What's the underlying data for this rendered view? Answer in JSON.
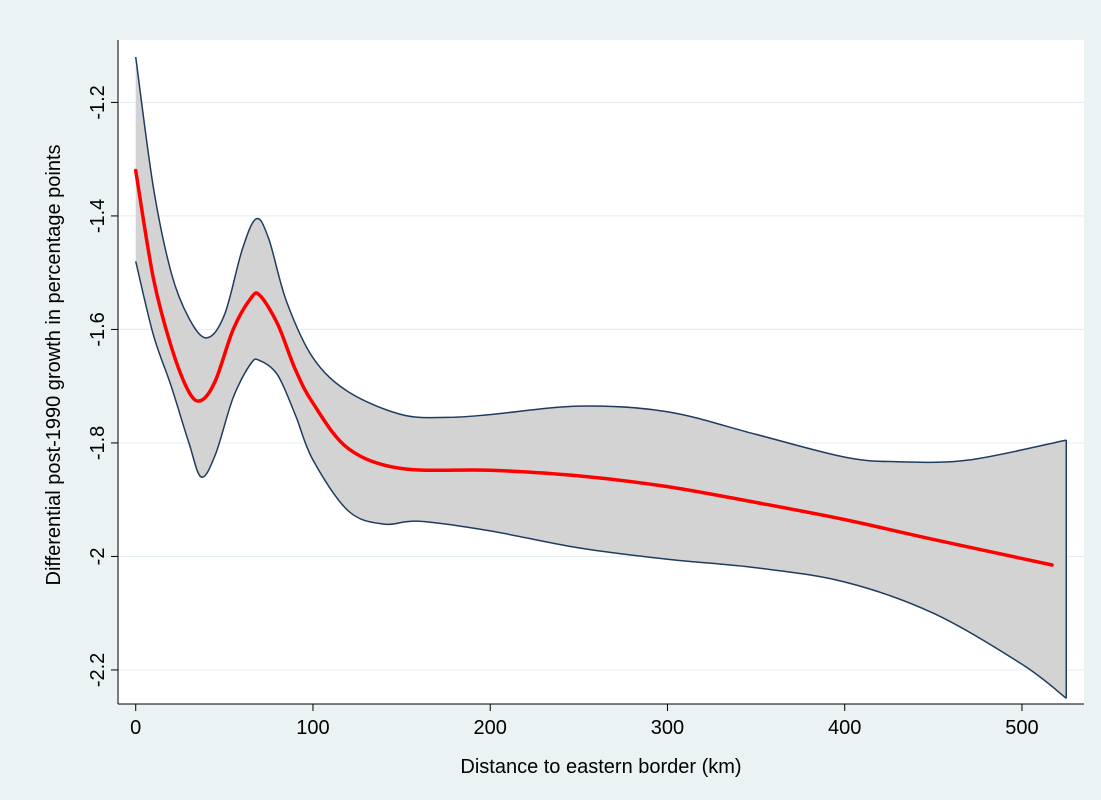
{
  "chart_data": {
    "type": "line",
    "xlabel": "Distance to eastern border (km)",
    "ylabel": "Differential post-1990 growth in percentage points",
    "xlim": [
      -10,
      535
    ],
    "ylim": [
      -2.26,
      -1.09
    ],
    "x_ticks": [
      0,
      100,
      200,
      300,
      400,
      500
    ],
    "x_tick_labels": [
      "0",
      "100",
      "200",
      "300",
      "400",
      "500"
    ],
    "y_ticks": [
      -1.2,
      -1.4,
      -1.6,
      -1.8,
      -2,
      -2.2
    ],
    "y_tick_labels": [
      "-1.2",
      "-1.4",
      "-1.6",
      "-1.8",
      "-2",
      "-2.2"
    ],
    "grid": "horizontal",
    "legend": "none",
    "colors": {
      "background": "#eaf2f3",
      "plot_background": "#ffffff",
      "grid": "#e3ecee",
      "band_fill": "#d3d3d3",
      "band_edge": "#1f3c5f",
      "line": "#ff0000"
    },
    "series": [
      {
        "role": "fit",
        "x": [
          0,
          10,
          20,
          30,
          37,
          45,
          55,
          65,
          70,
          80,
          90,
          100,
          120,
          150,
          200,
          250,
          300,
          350,
          400,
          450,
          517
        ],
        "y": [
          -1.32,
          -1.51,
          -1.63,
          -1.71,
          -1.725,
          -1.69,
          -1.6,
          -1.545,
          -1.54,
          -1.59,
          -1.67,
          -1.73,
          -1.81,
          -1.845,
          -1.848,
          -1.858,
          -1.877,
          -1.905,
          -1.935,
          -1.97,
          -2.015
        ]
      },
      {
        "role": "upper_ci",
        "x": [
          0,
          10,
          20,
          30,
          40,
          50,
          60,
          68,
          75,
          85,
          100,
          120,
          150,
          175,
          200,
          250,
          300,
          350,
          400,
          430,
          470,
          525
        ],
        "y": [
          -1.12,
          -1.35,
          -1.5,
          -1.58,
          -1.615,
          -1.575,
          -1.46,
          -1.405,
          -1.44,
          -1.55,
          -1.65,
          -1.71,
          -1.75,
          -1.755,
          -1.75,
          -1.735,
          -1.745,
          -1.785,
          -1.825,
          -1.833,
          -1.83,
          -1.795
        ]
      },
      {
        "role": "lower_ci",
        "x": [
          0,
          10,
          20,
          30,
          37,
          45,
          55,
          65,
          70,
          80,
          90,
          100,
          120,
          140,
          160,
          200,
          250,
          300,
          350,
          400,
          450,
          500,
          525
        ],
        "y": [
          -1.48,
          -1.61,
          -1.7,
          -1.8,
          -1.86,
          -1.82,
          -1.72,
          -1.66,
          -1.655,
          -1.68,
          -1.75,
          -1.83,
          -1.92,
          -1.943,
          -1.938,
          -1.955,
          -1.985,
          -2.005,
          -2.02,
          -2.045,
          -2.1,
          -2.19,
          -2.25
        ]
      }
    ]
  }
}
